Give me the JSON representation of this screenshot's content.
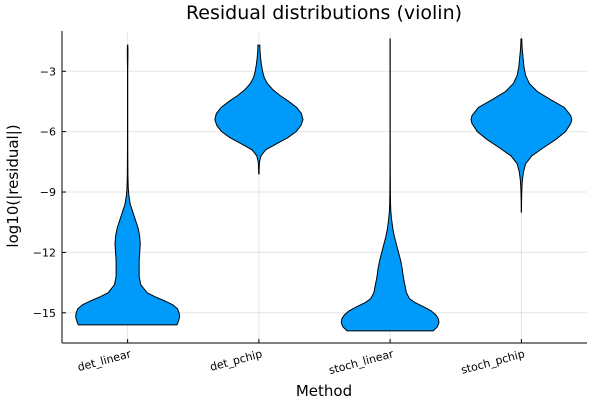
{
  "chart_data": {
    "type": "violin",
    "title": "Residual distributions (violin)",
    "xlabel": "Method",
    "ylabel": "log10(|residual|)",
    "categories": [
      "det_linear",
      "det_pchip",
      "stoch_linear",
      "stoch_pchip"
    ],
    "yticks": [
      -3,
      -6,
      -9,
      -12,
      -15
    ],
    "ylim": [
      -16.5,
      -1
    ],
    "grid": true,
    "color": "#009AFA",
    "violins": [
      {
        "name": "det_linear",
        "profile": [
          [
            -15.6,
            0.94
          ],
          [
            -15.4,
            0.97
          ],
          [
            -15.2,
            0.99
          ],
          [
            -15.0,
            0.98
          ],
          [
            -14.8,
            0.95
          ],
          [
            -14.6,
            0.86
          ],
          [
            -14.4,
            0.7
          ],
          [
            -14.2,
            0.52
          ],
          [
            -14.0,
            0.37
          ],
          [
            -13.6,
            0.25
          ],
          [
            -13.2,
            0.22
          ],
          [
            -12.8,
            0.22
          ],
          [
            -12.4,
            0.22
          ],
          [
            -12.0,
            0.23
          ],
          [
            -11.6,
            0.24
          ],
          [
            -11.2,
            0.23
          ],
          [
            -10.8,
            0.2
          ],
          [
            -10.4,
            0.15
          ],
          [
            -10.0,
            0.1
          ],
          [
            -9.6,
            0.05
          ],
          [
            -9.2,
            0.025
          ],
          [
            -8.8,
            0.012
          ],
          [
            -8.2,
            0.006
          ],
          [
            -7.0,
            0.003
          ],
          [
            -5.0,
            0.002
          ],
          [
            -3.0,
            0.002
          ],
          [
            -2.2,
            0.006
          ],
          [
            -2.0,
            0.006
          ],
          [
            -1.7,
            0.004
          ]
        ]
      },
      {
        "name": "det_pchip",
        "profile": [
          [
            -8.1,
            0.004
          ],
          [
            -7.8,
            0.006
          ],
          [
            -7.5,
            0.012
          ],
          [
            -7.2,
            0.04
          ],
          [
            -6.9,
            0.13
          ],
          [
            -6.6,
            0.34
          ],
          [
            -6.3,
            0.55
          ],
          [
            -6.0,
            0.71
          ],
          [
            -5.7,
            0.8
          ],
          [
            -5.4,
            0.84
          ],
          [
            -5.1,
            0.81
          ],
          [
            -4.8,
            0.72
          ],
          [
            -4.5,
            0.57
          ],
          [
            -4.2,
            0.4
          ],
          [
            -3.9,
            0.26
          ],
          [
            -3.6,
            0.16
          ],
          [
            -3.3,
            0.1
          ],
          [
            -3.0,
            0.07
          ],
          [
            -2.7,
            0.05
          ],
          [
            -2.4,
            0.035
          ],
          [
            -2.1,
            0.025
          ],
          [
            -1.9,
            0.02
          ],
          [
            -1.7,
            0.018
          ]
        ]
      },
      {
        "name": "stoch_linear",
        "profile": [
          [
            -15.9,
            0.82
          ],
          [
            -15.7,
            0.9
          ],
          [
            -15.5,
            0.93
          ],
          [
            -15.3,
            0.92
          ],
          [
            -15.1,
            0.87
          ],
          [
            -14.9,
            0.78
          ],
          [
            -14.7,
            0.64
          ],
          [
            -14.5,
            0.48
          ],
          [
            -14.3,
            0.37
          ],
          [
            -14.0,
            0.31
          ],
          [
            -13.6,
            0.28
          ],
          [
            -13.2,
            0.25
          ],
          [
            -12.8,
            0.23
          ],
          [
            -12.4,
            0.2
          ],
          [
            -12.0,
            0.16
          ],
          [
            -11.6,
            0.12
          ],
          [
            -11.2,
            0.08
          ],
          [
            -10.8,
            0.05
          ],
          [
            -10.4,
            0.03
          ],
          [
            -10.0,
            0.015
          ],
          [
            -9.6,
            0.008
          ],
          [
            -9.0,
            0.005
          ],
          [
            -8.0,
            0.003
          ],
          [
            -6.0,
            0.002
          ],
          [
            -4.0,
            0.002
          ],
          [
            -2.0,
            0.002
          ],
          [
            -1.4,
            0.002
          ]
        ]
      },
      {
        "name": "stoch_pchip",
        "profile": [
          [
            -10.0,
            0.002
          ],
          [
            -9.4,
            0.004
          ],
          [
            -8.8,
            0.01
          ],
          [
            -8.4,
            0.02
          ],
          [
            -8.0,
            0.04
          ],
          [
            -7.6,
            0.08
          ],
          [
            -7.2,
            0.2
          ],
          [
            -6.8,
            0.42
          ],
          [
            -6.4,
            0.65
          ],
          [
            -6.0,
            0.84
          ],
          [
            -5.6,
            0.94
          ],
          [
            -5.4,
            0.96
          ],
          [
            -5.2,
            0.94
          ],
          [
            -4.8,
            0.82
          ],
          [
            -4.4,
            0.55
          ],
          [
            -4.0,
            0.3
          ],
          [
            -3.6,
            0.15
          ],
          [
            -3.2,
            0.08
          ],
          [
            -2.8,
            0.05
          ],
          [
            -2.4,
            0.035
          ],
          [
            -2.0,
            0.02
          ],
          [
            -1.7,
            0.012
          ],
          [
            -1.4,
            0.008
          ]
        ]
      }
    ]
  }
}
